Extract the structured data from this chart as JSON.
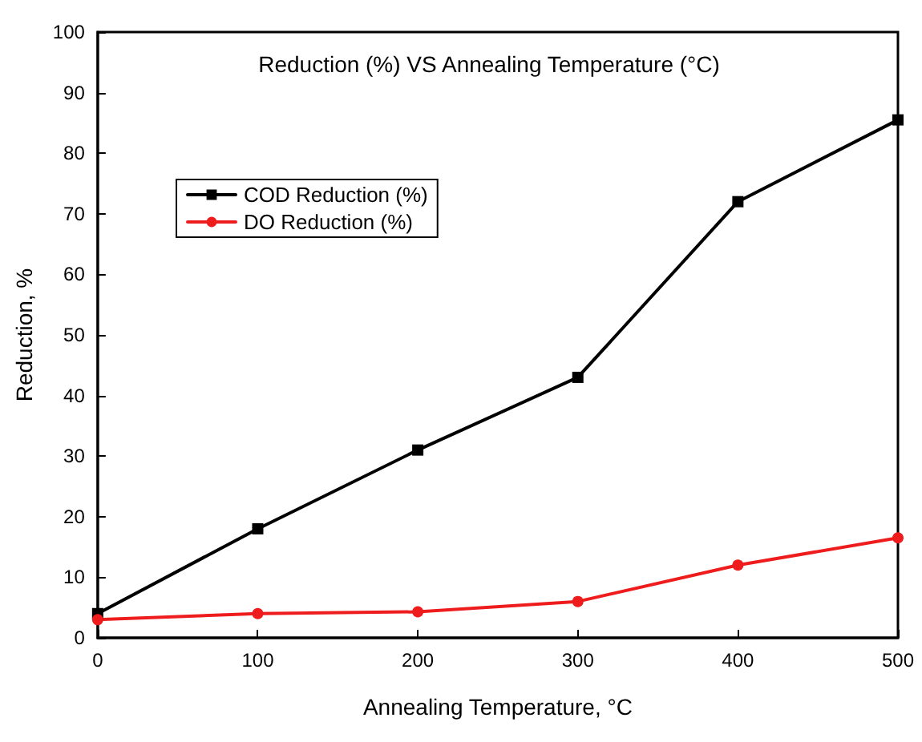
{
  "chart_data": {
    "type": "line",
    "title": "Reduction (%) VS Annealing Temperature (°C)",
    "xlabel": "Annealing Temperature, °C",
    "ylabel": "Reduction, %",
    "x": [
      0,
      100,
      200,
      300,
      400,
      500
    ],
    "series": [
      {
        "name": "COD Reduction (%)",
        "color": "#000000",
        "marker": "square",
        "values": [
          4,
          18,
          31,
          43,
          72,
          85.5
        ]
      },
      {
        "name": "DO Reduction (%)",
        "color": "#ee1c1c",
        "marker": "circle",
        "values": [
          3,
          4,
          4.3,
          6,
          12,
          16.5
        ]
      }
    ],
    "xlim": [
      0,
      500
    ],
    "xticks": [
      0,
      100,
      200,
      300,
      400,
      500
    ],
    "ylim": [
      0,
      100
    ],
    "yticks": [
      0,
      10,
      20,
      30,
      40,
      50,
      60,
      70,
      80,
      90,
      100
    ],
    "grid": false,
    "legend": "top left",
    "line_style": "solid"
  }
}
